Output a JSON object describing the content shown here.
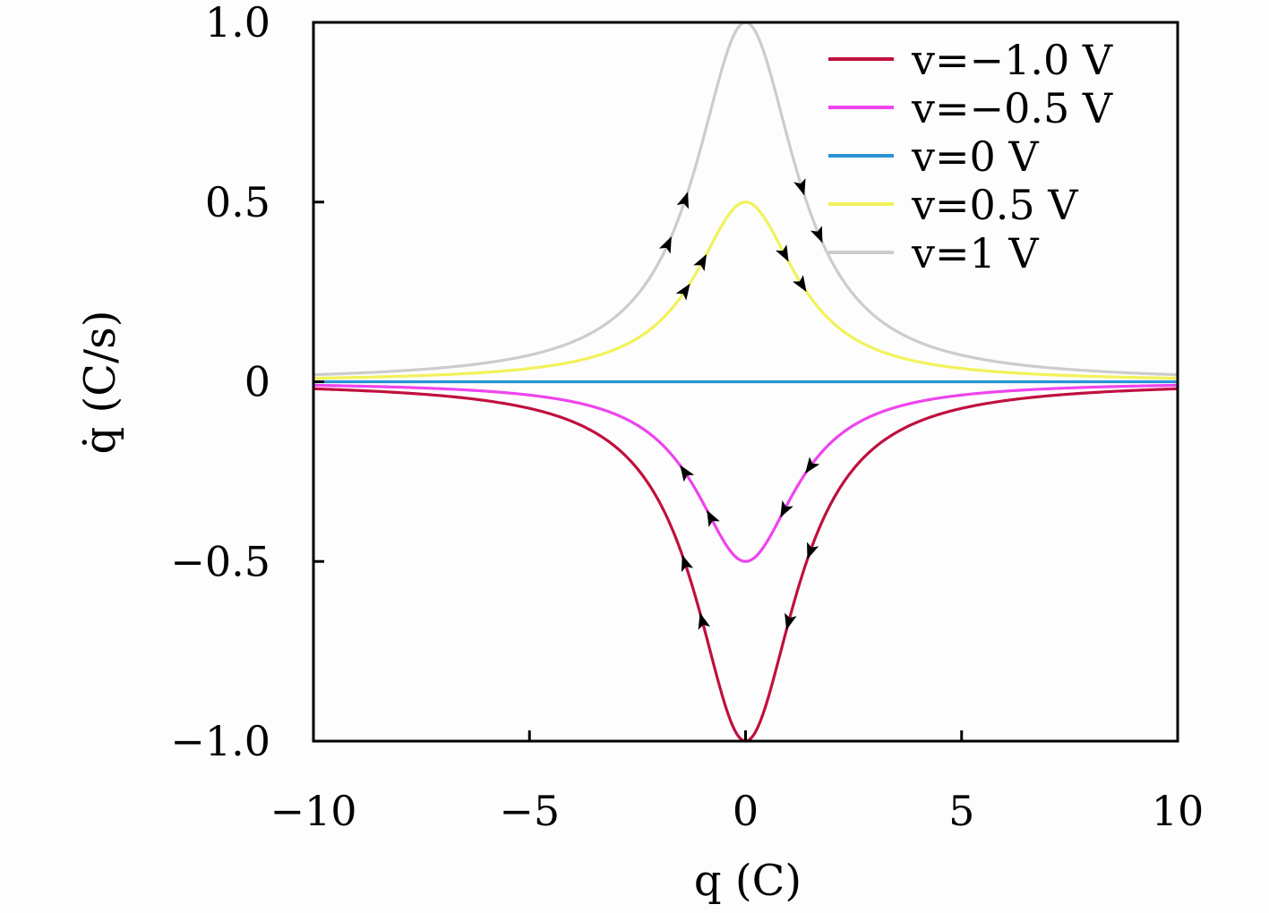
{
  "chart_data": {
    "type": "line",
    "xlabel": "q (C)",
    "ylabel": "q̇ (C/s)",
    "xlim": [
      -10,
      10
    ],
    "ylim": [
      -1.0,
      1.0
    ],
    "xticks": [
      -10,
      -5,
      0,
      5,
      10
    ],
    "xtick_labels": [
      "−10",
      "−5",
      "0",
      "5",
      "10"
    ],
    "yticks": [
      -1.0,
      -0.5,
      0,
      0.5,
      1.0
    ],
    "ytick_labels": [
      "−1.0",
      "−0.5",
      "0",
      "0.5",
      "1.0"
    ],
    "grid": false,
    "legend_position": "top-right",
    "curve_formula": "qdot = v / (1 + q^2 / 2)",
    "series": [
      {
        "name": "v=−1.0 V",
        "v": -1.0,
        "color": "#c0103e",
        "x": [
          -10,
          -8,
          -6,
          -5,
          -4,
          -3,
          -2,
          -1.5,
          -1,
          -0.5,
          0,
          0.5,
          1,
          1.5,
          2,
          3,
          4,
          5,
          6,
          8,
          10
        ],
        "y": [
          -0.02,
          -0.03,
          -0.053,
          -0.074,
          -0.111,
          -0.182,
          -0.333,
          -0.471,
          -0.667,
          -0.889,
          -1.0,
          -0.889,
          -0.667,
          -0.471,
          -0.333,
          -0.182,
          -0.111,
          -0.074,
          -0.053,
          -0.03,
          -0.02
        ]
      },
      {
        "name": "v=−0.5 V",
        "v": -0.5,
        "color": "#ee44ee",
        "x": [
          -10,
          -8,
          -6,
          -5,
          -4,
          -3,
          -2,
          -1.5,
          -1,
          -0.5,
          0,
          0.5,
          1,
          1.5,
          2,
          3,
          4,
          5,
          6,
          8,
          10
        ],
        "y": [
          -0.01,
          -0.015,
          -0.026,
          -0.037,
          -0.056,
          -0.091,
          -0.167,
          -0.235,
          -0.333,
          -0.444,
          -0.5,
          -0.444,
          -0.333,
          -0.235,
          -0.167,
          -0.091,
          -0.056,
          -0.037,
          -0.026,
          -0.015,
          -0.01
        ]
      },
      {
        "name": "v=0 V",
        "v": 0,
        "color": "#2a93d5",
        "x": [
          -10,
          10
        ],
        "y": [
          0,
          0
        ]
      },
      {
        "name": "v=0.5 V",
        "v": 0.5,
        "color": "#f2f25a",
        "x": [
          -10,
          -8,
          -6,
          -5,
          -4,
          -3,
          -2,
          -1.5,
          -1,
          -0.5,
          0,
          0.5,
          1,
          1.5,
          2,
          3,
          4,
          5,
          6,
          8,
          10
        ],
        "y": [
          0.01,
          0.015,
          0.026,
          0.037,
          0.056,
          0.091,
          0.167,
          0.235,
          0.333,
          0.444,
          0.5,
          0.444,
          0.333,
          0.235,
          0.167,
          0.091,
          0.056,
          0.037,
          0.026,
          0.015,
          0.01
        ]
      },
      {
        "name": "v=1 V",
        "v": 1.0,
        "color": "#cccccc",
        "x": [
          -10,
          -8,
          -6,
          -5,
          -4,
          -3,
          -2,
          -1.5,
          -1,
          -0.5,
          0,
          0.5,
          1,
          1.5,
          2,
          3,
          4,
          5,
          6,
          8,
          10
        ],
        "y": [
          0.02,
          0.03,
          0.053,
          0.074,
          0.111,
          0.182,
          0.333,
          0.471,
          0.667,
          0.889,
          1.0,
          0.889,
          0.667,
          0.471,
          0.333,
          0.182,
          0.111,
          0.074,
          0.053,
          0.03,
          0.02
        ]
      }
    ],
    "flow_arrows": [
      {
        "q": -1.8,
        "v": 1.0,
        "dir": 1
      },
      {
        "q": -1.4,
        "v": 1.0,
        "dir": 1
      },
      {
        "q": 1.3,
        "v": 1.0,
        "dir": 1
      },
      {
        "q": 1.7,
        "v": 1.0,
        "dir": 1
      },
      {
        "q": -1.4,
        "v": 0.5,
        "dir": 1
      },
      {
        "q": -1.0,
        "v": 0.5,
        "dir": 1
      },
      {
        "q": 0.9,
        "v": 0.5,
        "dir": 1
      },
      {
        "q": 1.3,
        "v": 0.5,
        "dir": 1
      },
      {
        "q": -1.4,
        "v": -0.5,
        "dir": 1
      },
      {
        "q": -0.8,
        "v": -0.5,
        "dir": 1
      },
      {
        "q": 0.9,
        "v": -0.5,
        "dir": 1
      },
      {
        "q": 1.5,
        "v": -0.5,
        "dir": 1
      },
      {
        "q": -1.4,
        "v": -1.0,
        "dir": 1
      },
      {
        "q": -1.0,
        "v": -1.0,
        "dir": 1
      },
      {
        "q": 1.0,
        "v": -1.0,
        "dir": 1
      },
      {
        "q": 1.5,
        "v": -1.0,
        "dir": 1
      }
    ]
  }
}
